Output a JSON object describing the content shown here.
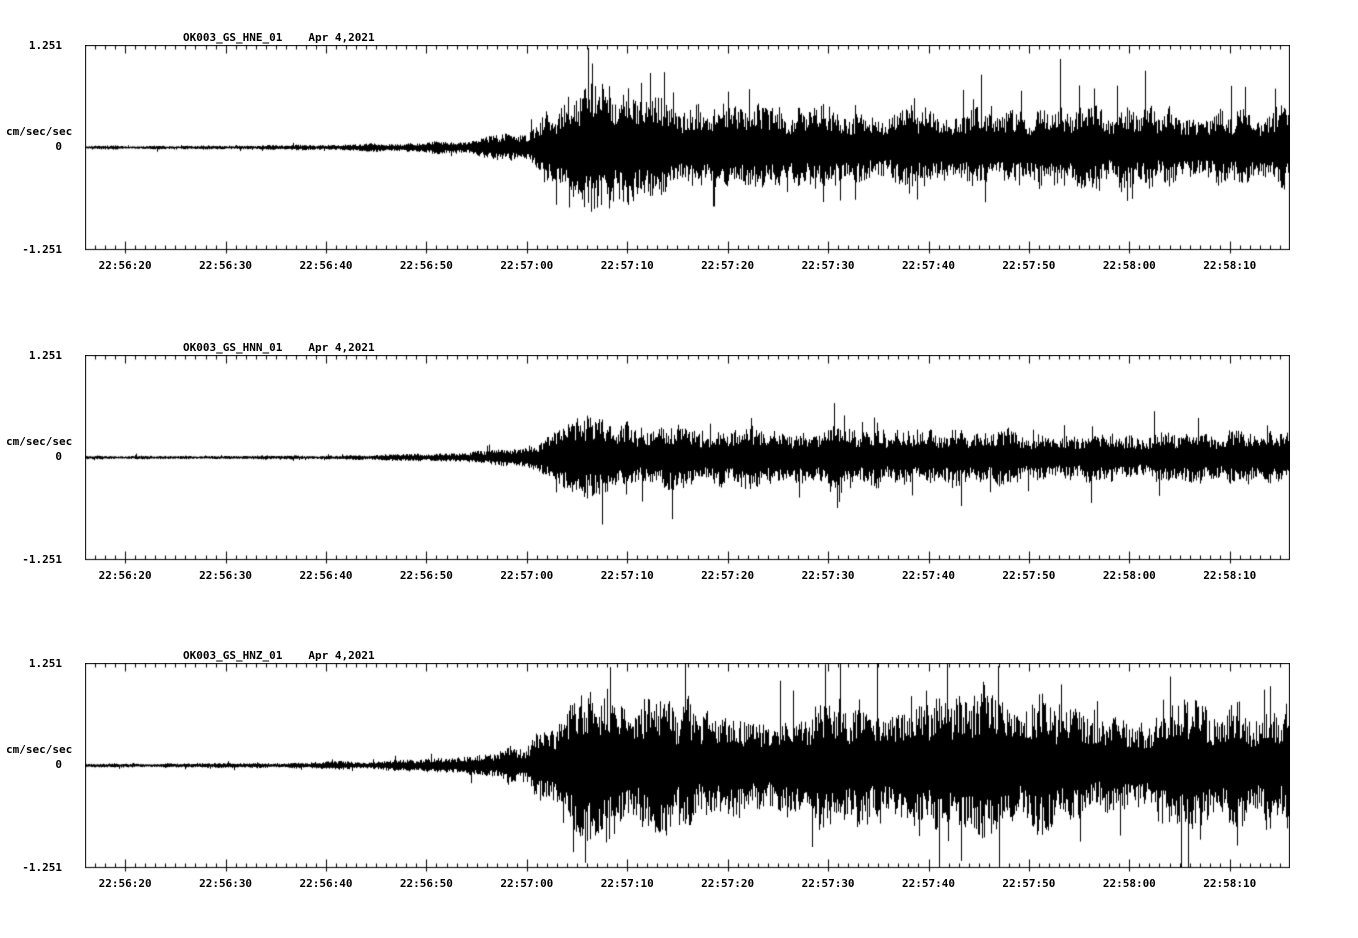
{
  "page": {
    "background": "#ffffff",
    "trace_color": "#000000",
    "description": "Three-component strong-motion seismogram record (station OK003, GS network) for Apr 4, 2021, channels HNE, HNN, HNZ, acceleration in cm/sec/sec"
  },
  "chart_data": [
    {
      "type": "line",
      "title": "OK003_GS_HNE_01",
      "date": "Apr 4,2021",
      "ylabel": "cm/sec/sec",
      "ylim": [
        -1.251,
        1.251
      ],
      "y_ticks": [
        "1.251",
        "0",
        "-1.251"
      ],
      "x_ticks": [
        "22:56:20",
        "22:56:30",
        "22:56:40",
        "22:56:50",
        "22:57:00",
        "22:57:10",
        "22:57:20",
        "22:57:30",
        "22:57:40",
        "22:57:50",
        "22:58:00",
        "22:58:10"
      ],
      "x_start": "22:56:16",
      "x_end": "22:58:16",
      "seconds_span": 120,
      "first_tick_offset_s": 4,
      "tick_interval_s": 10,
      "grid": false,
      "legend": "none",
      "signal_description": "Quiet background noise until ~22:56:50, emergent onset growing through 22:56:55, strongest shaking ~22:57:03-22:57:08 peaking near 1.0 cm/sec/sec, then sustained high-amplitude coda (~0.4-0.5) through end of record",
      "envelope_units": "approx. half-band amplitude (cm/sec/sec) vs seconds from 22:56:16",
      "envelope": [
        [
          0,
          0.02
        ],
        [
          20,
          0.025
        ],
        [
          28,
          0.04
        ],
        [
          36,
          0.07
        ],
        [
          41,
          0.12
        ],
        [
          44,
          0.22
        ],
        [
          47,
          0.5
        ],
        [
          50,
          0.8
        ],
        [
          53,
          0.75
        ],
        [
          57,
          0.55
        ],
        [
          63,
          0.48
        ],
        [
          72,
          0.42
        ],
        [
          82,
          0.45
        ],
        [
          92,
          0.4
        ],
        [
          102,
          0.45
        ],
        [
          112,
          0.42
        ],
        [
          120,
          0.45
        ]
      ]
    },
    {
      "type": "line",
      "title": "OK003_GS_HNN_01",
      "date": "Apr 4,2021",
      "ylabel": "cm/sec/sec",
      "ylim": [
        -1.251,
        1.251
      ],
      "y_ticks": [
        "1.251",
        "0",
        "-1.251"
      ],
      "x_ticks": [
        "22:56:20",
        "22:56:30",
        "22:56:40",
        "22:56:50",
        "22:57:00",
        "22:57:10",
        "22:57:20",
        "22:57:30",
        "22:57:40",
        "22:57:50",
        "22:58:00",
        "22:58:10"
      ],
      "x_start": "22:56:16",
      "x_end": "22:58:16",
      "seconds_span": 120,
      "first_tick_offset_s": 4,
      "tick_interval_s": 10,
      "grid": false,
      "legend": "none",
      "signal_description": "Same event on north component: quiet until ~22:56:50, onset ~22:56:56, peak ~22:57:05 near 0.6 cm/sec/sec, sustained coda ~0.3 through end of record",
      "envelope_units": "approx. half-band amplitude (cm/sec/sec) vs seconds from 22:56:16",
      "envelope": [
        [
          0,
          0.018
        ],
        [
          22,
          0.022
        ],
        [
          30,
          0.035
        ],
        [
          38,
          0.06
        ],
        [
          43,
          0.12
        ],
        [
          46,
          0.22
        ],
        [
          49,
          0.4
        ],
        [
          52,
          0.45
        ],
        [
          56,
          0.4
        ],
        [
          62,
          0.33
        ],
        [
          70,
          0.33
        ],
        [
          80,
          0.32
        ],
        [
          90,
          0.3
        ],
        [
          100,
          0.28
        ],
        [
          110,
          0.3
        ],
        [
          120,
          0.28
        ]
      ]
    },
    {
      "type": "line",
      "title": "OK003_GS_HNZ_01",
      "date": "Apr 4,2021",
      "ylabel": "cm/sec/sec",
      "ylim": [
        -1.251,
        1.251
      ],
      "y_ticks": [
        "1.251",
        "0",
        "-1.251"
      ],
      "x_ticks": [
        "22:56:20",
        "22:56:30",
        "22:56:40",
        "22:56:50",
        "22:57:00",
        "22:57:10",
        "22:57:20",
        "22:57:30",
        "22:57:40",
        "22:57:50",
        "22:58:00",
        "22:58:10"
      ],
      "x_start": "22:56:16",
      "x_end": "22:58:16",
      "seconds_span": 120,
      "first_tick_offset_s": 4,
      "tick_interval_s": 10,
      "grid": false,
      "legend": "none",
      "signal_description": "Vertical component, largest amplitudes: quiet until ~22:56:50, onset ~22:56:56, peaks ~22:57:04 reaching full scale (~1.25 cm/sec/sec), sustained large coda ~0.7 with spikes near full scale through end of record",
      "envelope_units": "approx. half-band amplitude (cm/sec/sec) vs seconds from 22:56:16",
      "envelope": [
        [
          0,
          0.02
        ],
        [
          20,
          0.03
        ],
        [
          28,
          0.05
        ],
        [
          36,
          0.09
        ],
        [
          41,
          0.16
        ],
        [
          44,
          0.3
        ],
        [
          47,
          0.6
        ],
        [
          50,
          0.85
        ],
        [
          53,
          0.9
        ],
        [
          57,
          0.75
        ],
        [
          63,
          0.65
        ],
        [
          72,
          0.7
        ],
        [
          82,
          0.68
        ],
        [
          92,
          0.72
        ],
        [
          102,
          0.68
        ],
        [
          112,
          0.7
        ],
        [
          120,
          0.72
        ]
      ]
    }
  ]
}
